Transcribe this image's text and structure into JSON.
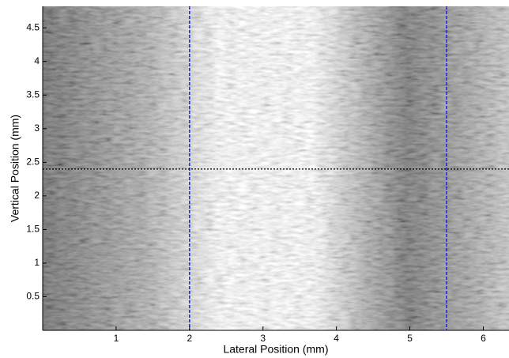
{
  "chart_data": {
    "type": "image",
    "xlabel": "Lateral Position (mm)",
    "ylabel": "Vertical Position (mm)",
    "xlim": [
      0,
      6.35
    ],
    "ylim": [
      0,
      4.82
    ],
    "xticks": [
      1,
      2,
      3,
      4,
      5,
      6
    ],
    "yticks": [
      0.5,
      1,
      1.5,
      2,
      2.5,
      3,
      3.5,
      4,
      4.5
    ],
    "vlines": [
      2,
      5.5
    ],
    "vline_color": "#1a1aff",
    "hline": 2.4,
    "hline_color": "#000000",
    "colormap": "gray"
  }
}
